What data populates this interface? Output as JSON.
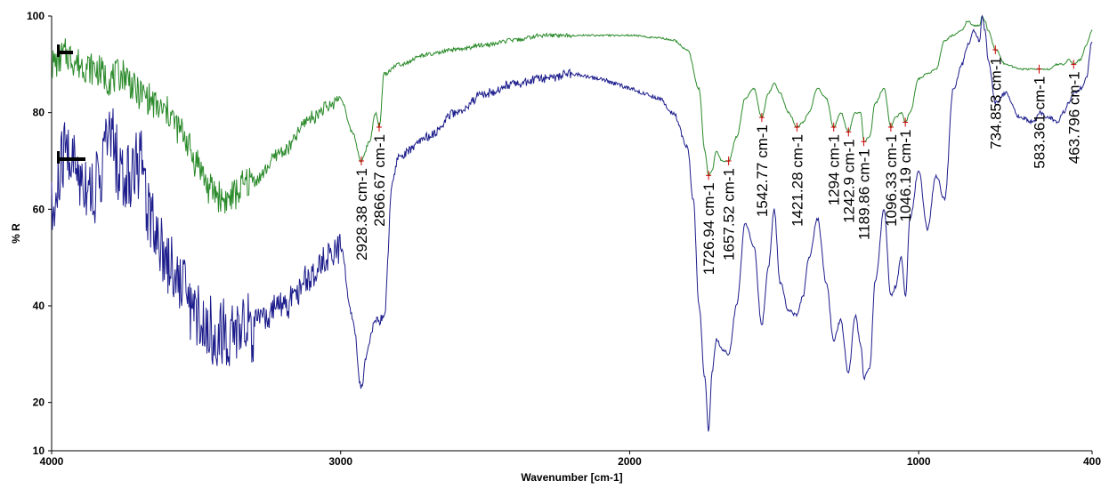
{
  "chart_data": {
    "type": "line",
    "title": "",
    "xlabel": "Wavenumber [cm-1]",
    "ylabel": "% R",
    "xlim": [
      4000,
      400
    ],
    "ylim": [
      10,
      100
    ],
    "x_ticks": [
      4000,
      3000,
      2000,
      1000,
      400
    ],
    "y_ticks": [
      10,
      20,
      40,
      60,
      80,
      100
    ],
    "grid": false,
    "legend": "none",
    "colors": {
      "series_top": "#2a8a2a",
      "series_bottom": "#1c1c8c",
      "peak_marker": "#cc0000"
    },
    "series": [
      {
        "x": [
          4000,
          3950,
          3900,
          3850,
          3800,
          3750,
          3700,
          3600,
          3550,
          3500,
          3450,
          3400,
          3300,
          3200,
          3100,
          3050,
          3000,
          2960,
          2928,
          2900,
          2880,
          2866,
          2850,
          2800,
          2700,
          2600,
          2500,
          2400,
          2300,
          2200,
          2100,
          2000,
          1900,
          1850,
          1800,
          1760,
          1740,
          1727,
          1715,
          1700,
          1680,
          1657,
          1630,
          1600,
          1570,
          1543,
          1520,
          1500,
          1480,
          1450,
          1421,
          1400,
          1380,
          1350,
          1320,
          1294,
          1270,
          1243,
          1220,
          1200,
          1190,
          1170,
          1150,
          1120,
          1096,
          1080,
          1060,
          1046,
          1030,
          1000,
          970,
          940,
          910,
          880,
          850,
          830,
          810,
          790,
          780,
          770,
          760,
          734,
          700,
          650,
          600,
          583,
          550,
          520,
          500,
          480,
          464,
          440,
          420,
          400
        ],
        "values": [
          90,
          92,
          90,
          89,
          87,
          88,
          84,
          80,
          76,
          70,
          64,
          62,
          66,
          72,
          79,
          81,
          83,
          76,
          70,
          74,
          80,
          77,
          88,
          90,
          92,
          93,
          94,
          95,
          96,
          96,
          96,
          96,
          95.5,
          95,
          93,
          85,
          72,
          67,
          68,
          72,
          70,
          70,
          75,
          83,
          85,
          79,
          84,
          86,
          84,
          80,
          77,
          78,
          80,
          85,
          83,
          77,
          80,
          76,
          80,
          80,
          74,
          75,
          82,
          85,
          77,
          79,
          80,
          78,
          80,
          87,
          88,
          89,
          95,
          96,
          97,
          99,
          98,
          98,
          100,
          99,
          97,
          93,
          90,
          89,
          89,
          89,
          89,
          90,
          90,
          91,
          90,
          91,
          94,
          97
        ]
      },
      {
        "x": [
          4000,
          3950,
          3900,
          3850,
          3800,
          3750,
          3700,
          3650,
          3600,
          3550,
          3500,
          3450,
          3400,
          3300,
          3200,
          3100,
          3050,
          3000,
          2960,
          2928,
          2910,
          2880,
          2866,
          2850,
          2820,
          2800,
          2700,
          2600,
          2500,
          2400,
          2300,
          2200,
          2100,
          2050,
          2000,
          1950,
          1900,
          1850,
          1800,
          1780,
          1760,
          1740,
          1727,
          1715,
          1700,
          1680,
          1657,
          1630,
          1600,
          1570,
          1543,
          1520,
          1500,
          1480,
          1450,
          1421,
          1400,
          1380,
          1350,
          1320,
          1294,
          1270,
          1243,
          1220,
          1200,
          1190,
          1170,
          1150,
          1120,
          1096,
          1080,
          1060,
          1046,
          1030,
          1000,
          970,
          940,
          910,
          880,
          850,
          830,
          810,
          790,
          780,
          770,
          760,
          734,
          700,
          650,
          600,
          583,
          550,
          520,
          500,
          480,
          464,
          440,
          420,
          400
        ],
        "values": [
          58,
          72,
          67,
          64,
          75,
          66,
          70,
          58,
          50,
          45,
          38,
          35,
          34,
          36,
          40,
          46,
          50,
          52,
          38,
          23,
          30,
          37,
          37,
          38,
          66,
          71,
          75,
          80,
          84,
          86,
          87,
          88,
          87,
          86,
          85,
          84,
          83,
          80,
          73,
          62,
          40,
          25,
          14,
          26,
          33,
          31,
          30,
          40,
          57,
          52,
          36,
          48,
          60,
          45,
          39,
          38,
          42,
          50,
          58,
          45,
          33,
          37,
          26,
          38,
          32,
          25,
          27,
          45,
          60,
          42,
          44,
          50,
          42,
          58,
          68,
          56,
          67,
          62,
          85,
          90,
          94,
          97,
          95,
          100,
          97,
          91,
          82,
          84,
          79,
          78,
          80,
          79,
          78,
          80,
          82,
          84,
          85,
          87,
          95
        ]
      }
    ],
    "peaks": [
      {
        "x": 2928.38,
        "y": 70,
        "label": "2928.38 cm-1"
      },
      {
        "x": 2866.67,
        "y": 77,
        "label": "2866.67 cm-1"
      },
      {
        "x": 1726.94,
        "y": 67,
        "label": "1726.94 cm-1"
      },
      {
        "x": 1657.52,
        "y": 70,
        "label": "1657.52 cm-1"
      },
      {
        "x": 1542.77,
        "y": 79,
        "label": "1542.77 cm-1"
      },
      {
        "x": 1421.28,
        "y": 77,
        "label": "1421.28 cm-1"
      },
      {
        "x": 1294,
        "y": 77,
        "label": "1294 cm-1"
      },
      {
        "x": 1242.9,
        "y": 76,
        "label": "1242.9 cm-1"
      },
      {
        "x": 1189.86,
        "y": 74,
        "label": "1189.86 cm-1"
      },
      {
        "x": 1096.33,
        "y": 77,
        "label": "1096.33 cm-1"
      },
      {
        "x": 1046.19,
        "y": 78,
        "label": "1046.19 cm-1"
      },
      {
        "x": 734.853,
        "y": 93,
        "label": "734.853 cm-1"
      },
      {
        "x": 583.361,
        "y": 89,
        "label": "583.361 cm-1"
      },
      {
        "x": 463.796,
        "y": 90,
        "label": "463.796 cm-1"
      }
    ]
  }
}
